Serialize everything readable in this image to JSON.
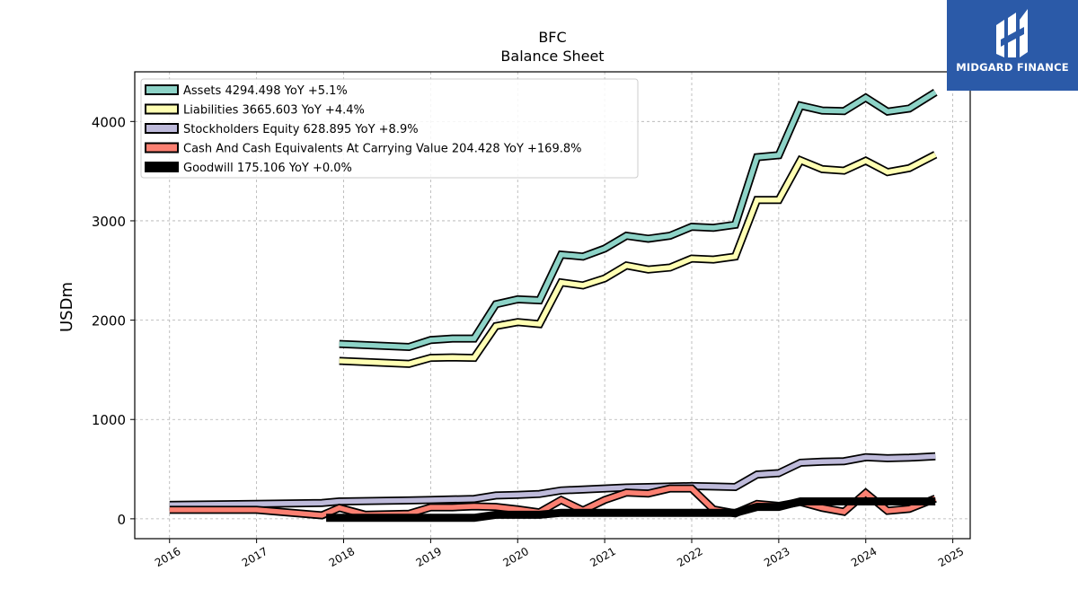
{
  "brand": {
    "name": "MIDGARD FINANCE",
    "color": "#2b5aa8"
  },
  "chart_data": {
    "type": "line",
    "title": "BFC",
    "subtitle": "Balance  Sheet",
    "ylabel": "USDm",
    "xlabel": "",
    "xlim": [
      2015.6,
      2025.2
    ],
    "ylim": [
      -200,
      4500
    ],
    "x_ticks": [
      2016,
      2017,
      2018,
      2019,
      2020,
      2021,
      2022,
      2023,
      2024,
      2025
    ],
    "x_tick_labels": [
      "2016",
      "2017",
      "2018",
      "2019",
      "2020",
      "2021",
      "2022",
      "2023",
      "2024",
      "2025"
    ],
    "y_ticks": [
      0,
      1000,
      2000,
      3000,
      4000
    ],
    "y_tick_labels": [
      "0",
      "1000",
      "2000",
      "3000",
      "4000"
    ],
    "grid": true,
    "legend_position": "top-left",
    "series": [
      {
        "name": "Assets",
        "legend": "Assets  4294.498 YoY +5.1%",
        "color": "#8dd3c7",
        "x": [
          2017.95,
          2018.75,
          2019.0,
          2019.25,
          2019.5,
          2019.75,
          2020.0,
          2020.25,
          2020.5,
          2020.75,
          2021.0,
          2021.25,
          2021.5,
          2021.75,
          2022.0,
          2022.25,
          2022.5,
          2022.75,
          2023.0,
          2023.25,
          2023.5,
          2023.75,
          2024.0,
          2024.25,
          2024.5,
          2024.8
        ],
        "values": [
          1760,
          1730,
          1800,
          1815,
          1815,
          2160,
          2210,
          2200,
          2660,
          2640,
          2720,
          2850,
          2820,
          2850,
          2940,
          2930,
          2960,
          3640,
          3660,
          4160,
          4110,
          4105,
          4240,
          4100,
          4130,
          4294
        ]
      },
      {
        "name": "Liabilities",
        "legend": "Liabilities  3665.603 YoY +4.4%",
        "color": "#ffffb3",
        "x": [
          2017.95,
          2018.75,
          2019.0,
          2019.25,
          2019.5,
          2019.75,
          2020.0,
          2020.25,
          2020.5,
          2020.75,
          2021.0,
          2021.25,
          2021.5,
          2021.75,
          2022.0,
          2022.25,
          2022.5,
          2022.75,
          2023.0,
          2023.25,
          2023.5,
          2023.75,
          2024.0,
          2024.25,
          2024.5,
          2024.8
        ],
        "values": [
          1590,
          1560,
          1620,
          1625,
          1620,
          1940,
          1980,
          1960,
          2380,
          2350,
          2420,
          2550,
          2510,
          2530,
          2620,
          2610,
          2640,
          3210,
          3210,
          3610,
          3520,
          3505,
          3605,
          3490,
          3530,
          3666
        ]
      },
      {
        "name": "Stockholders Equity",
        "legend": "Stockholders Equity  628.895 YoY +8.9%",
        "color": "#bebada",
        "x": [
          2016.0,
          2017.0,
          2017.75,
          2017.95,
          2018.75,
          2019.0,
          2019.25,
          2019.5,
          2019.75,
          2020.0,
          2020.25,
          2020.5,
          2020.75,
          2021.0,
          2021.25,
          2021.5,
          2021.75,
          2022.0,
          2022.25,
          2022.5,
          2022.75,
          2023.0,
          2023.25,
          2023.5,
          2023.75,
          2024.0,
          2024.25,
          2024.5,
          2024.8
        ],
        "values": [
          140,
          150,
          160,
          175,
          185,
          190,
          195,
          200,
          235,
          240,
          250,
          285,
          295,
          305,
          315,
          320,
          325,
          330,
          325,
          320,
          445,
          460,
          565,
          575,
          580,
          620,
          610,
          615,
          629
        ]
      },
      {
        "name": "Cash And Cash Equivalents At Carrying Value",
        "legend": "Cash And Cash Equivalents At Carrying Value  204.428 YoY +169.8%",
        "color": "#fb8072",
        "x": [
          2016.0,
          2017.0,
          2017.75,
          2017.95,
          2018.25,
          2018.75,
          2019.0,
          2019.25,
          2019.5,
          2019.75,
          2020.0,
          2020.25,
          2020.5,
          2020.75,
          2021.0,
          2021.25,
          2021.5,
          2021.75,
          2022.0,
          2022.25,
          2022.5,
          2022.75,
          2023.0,
          2023.25,
          2023.5,
          2023.75,
          2024.0,
          2024.25,
          2024.5,
          2024.8
        ],
        "values": [
          90,
          90,
          35,
          110,
          40,
          50,
          115,
          115,
          125,
          120,
          95,
          65,
          190,
          85,
          190,
          265,
          255,
          305,
          305,
          95,
          55,
          150,
          130,
          170,
          110,
          70,
          260,
          80,
          100,
          204
        ]
      },
      {
        "name": "Goodwill",
        "legend": "Goodwill  175.106 YoY +0.0%",
        "color": "#000000",
        "x": [
          2017.8,
          2019.5,
          2019.75,
          2020.0,
          2020.25,
          2020.5,
          2022.5,
          2022.75,
          2023.0,
          2023.25,
          2024.8
        ],
        "values": [
          10,
          10,
          40,
          40,
          40,
          60,
          60,
          120,
          120,
          175,
          175
        ]
      }
    ]
  }
}
